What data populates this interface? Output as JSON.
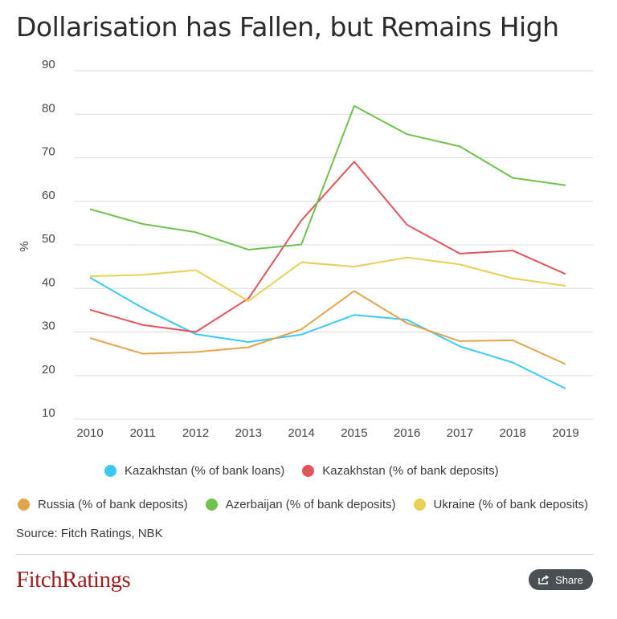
{
  "title": "Dollarisation has Fallen, but Remains High",
  "source": "Source: Fitch Ratings, NBK",
  "logo": "FitchRatings",
  "share_label": "Share",
  "colors": {
    "kaz_loans": "#3cc8f5",
    "kaz_deposits": "#e0555a",
    "russia": "#e2a54c",
    "azerbaijan": "#6fc24c",
    "ukraine": "#e8cf55",
    "share_bg": "#4a4f53",
    "logo": "#9b1d1d"
  },
  "chart_data": {
    "type": "line",
    "title": "Dollarisation has Fallen, but Remains High",
    "ylabel": "%",
    "xlabel": "",
    "ylim": [
      10,
      90
    ],
    "yticks": [
      10,
      20,
      30,
      40,
      50,
      60,
      70,
      80,
      90
    ],
    "grid": true,
    "legend_position": "bottom",
    "x": [
      "2010",
      "2011",
      "2012",
      "2013",
      "2014",
      "2015",
      "2016",
      "2017",
      "2018",
      "2019"
    ],
    "series": [
      {
        "name": "Kazakhstan (% of bank loans)",
        "color": "#3cc8f5",
        "values": [
          42.5,
          35.5,
          29.5,
          27.7,
          29.4,
          33.9,
          32.8,
          26.7,
          23.0,
          17.0
        ]
      },
      {
        "name": "Kazakhstan (% of bank deposits)",
        "color": "#e0555a",
        "values": [
          35.1,
          31.6,
          30.0,
          37.7,
          55.6,
          69.1,
          54.6,
          48.0,
          48.7,
          43.3
        ]
      },
      {
        "name": "Russia (% of bank deposits)",
        "color": "#e2a54c",
        "values": [
          28.6,
          25.0,
          25.4,
          26.5,
          30.6,
          39.4,
          32.0,
          27.9,
          28.1,
          22.6
        ]
      },
      {
        "name": "Azerbaijan (% of bank deposits)",
        "color": "#6fc24c",
        "values": [
          58.2,
          54.8,
          52.9,
          48.9,
          50.1,
          81.9,
          75.4,
          72.6,
          65.4,
          63.7
        ]
      },
      {
        "name": "Ukraine (% of bank deposits)",
        "color": "#e8cf55",
        "values": [
          42.8,
          43.1,
          44.2,
          37.1,
          46.0,
          45.0,
          47.1,
          45.5,
          42.3,
          40.6
        ]
      }
    ]
  }
}
